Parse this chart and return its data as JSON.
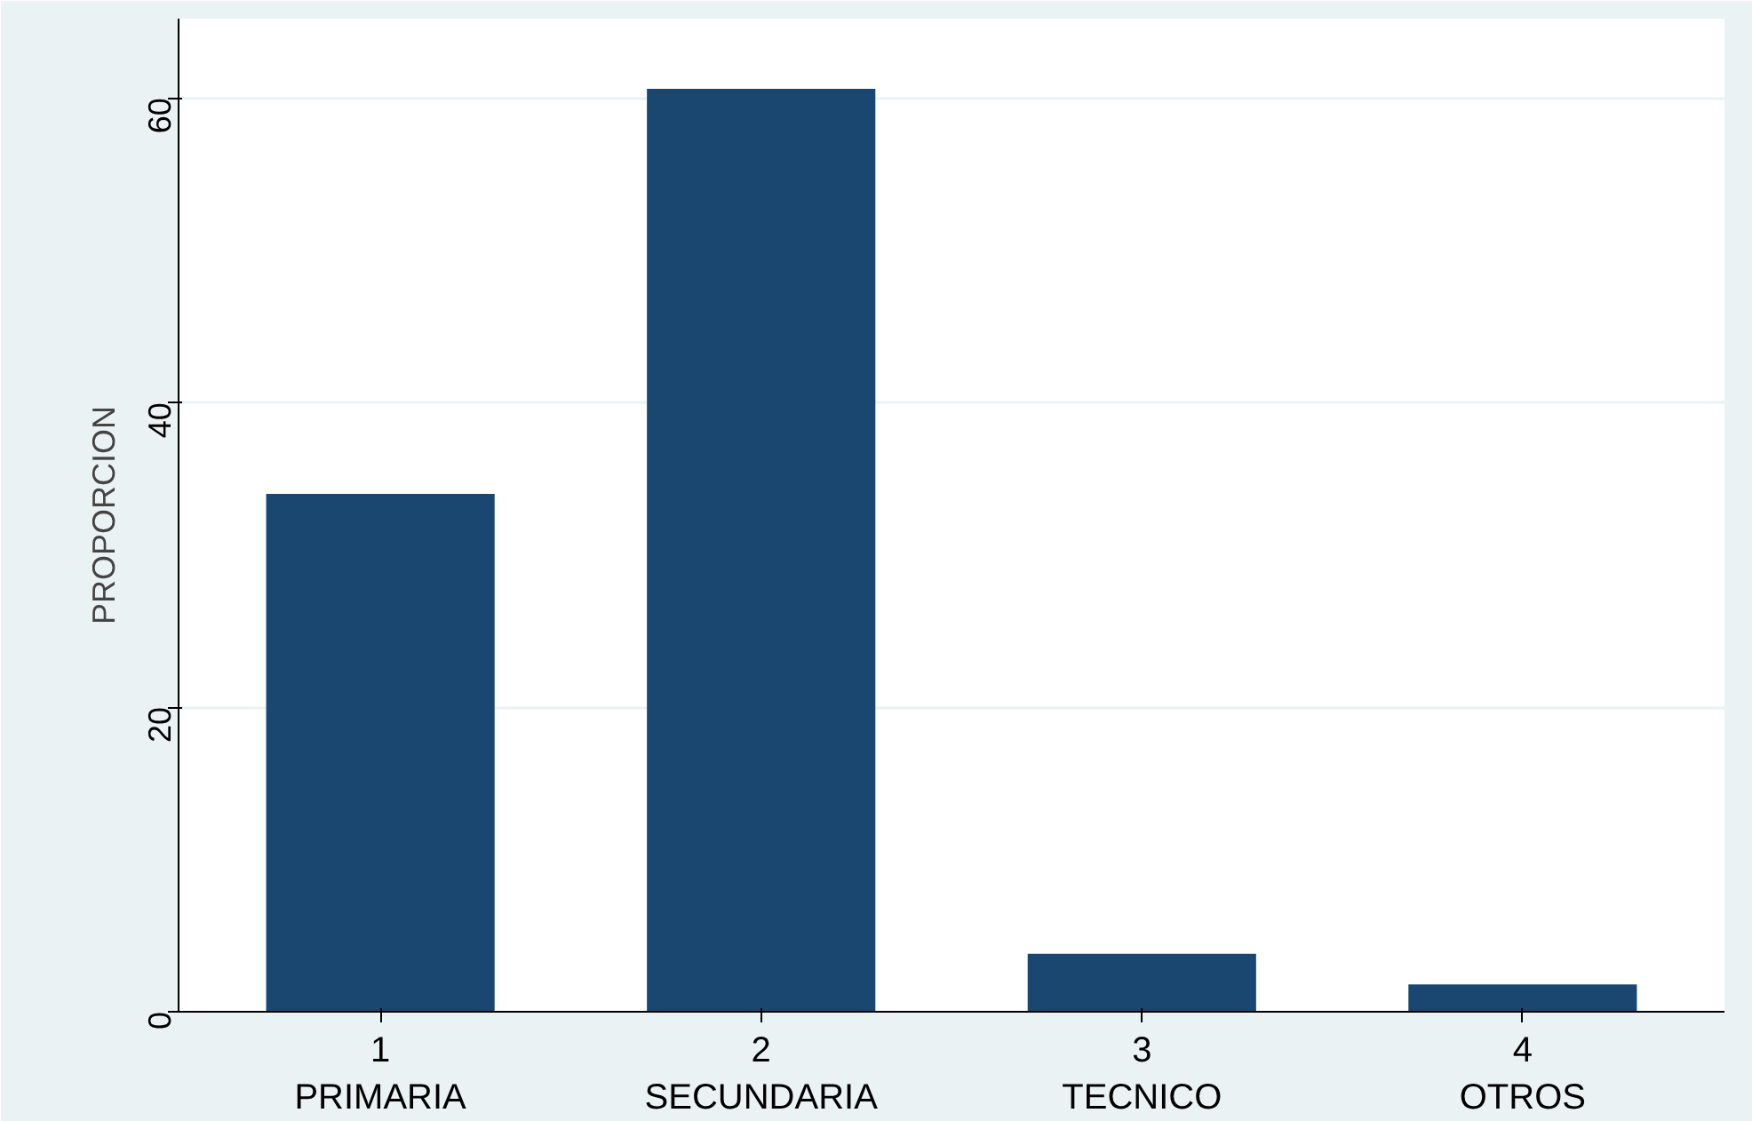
{
  "chart_data": {
    "type": "bar",
    "ylabel": "PROPORCION",
    "categories": [
      "1\nPRIMARIA",
      "2\nSECUNDARIA",
      "3\nTECNICO",
      "4\nOTROS"
    ],
    "values": [
      34.0,
      60.6,
      3.8,
      1.8
    ],
    "color": "#1a476f",
    "ylim": [
      0,
      65.2
    ],
    "yticks": [
      0,
      20,
      40,
      60
    ],
    "grid": "y"
  }
}
